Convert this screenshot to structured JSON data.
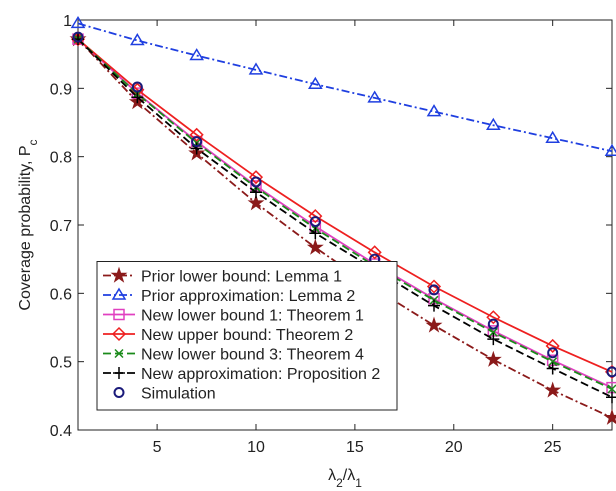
{
  "chart_data": {
    "type": "line",
    "xlabel": [
      {
        "text": "λ"
      },
      {
        "text": "2",
        "sub": true
      },
      {
        "text": "/λ"
      },
      {
        "text": "1",
        "sub": true
      }
    ],
    "ylabel": [
      {
        "text": "Coverage probability, P"
      },
      {
        "text": "c",
        "sub": true
      }
    ],
    "x": [
      1,
      4,
      7,
      10,
      13,
      16,
      19,
      22,
      25,
      28
    ],
    "xlim": [
      1,
      28
    ],
    "ylim": [
      0.4,
      1
    ],
    "xticks": [
      5,
      10,
      15,
      20,
      25
    ],
    "yticks": [
      0.4,
      0.5,
      0.6,
      0.7,
      0.8,
      0.9,
      1
    ],
    "legend": "lower left",
    "series": [
      {
        "name": "Prior lower bound: Lemma 1",
        "color": "#8b1a1a",
        "marker": "star",
        "dash": "dashdot",
        "values": [
          0.972,
          0.88,
          0.805,
          0.732,
          0.667,
          0.607,
          0.553,
          0.503,
          0.458,
          0.418
        ]
      },
      {
        "name": "Prior approximation: Lemma 2",
        "color": "#1f3fe0",
        "marker": "triangle",
        "dash": "dashdot",
        "values": [
          0.995,
          0.97,
          0.948,
          0.927,
          0.906,
          0.886,
          0.866,
          0.846,
          0.827,
          0.808
        ]
      },
      {
        "name": "New lower bound 1: Theorem 1",
        "color": "#e040c0",
        "marker": "square",
        "dash": "solid",
        "values": [
          0.972,
          0.893,
          0.822,
          0.757,
          0.698,
          0.643,
          0.592,
          0.545,
          0.502,
          0.462
        ]
      },
      {
        "name": "New upper bound: Theorem 2",
        "color": "#ee2020",
        "marker": "diamond",
        "dash": "solid",
        "values": [
          0.972,
          0.898,
          0.832,
          0.77,
          0.713,
          0.66,
          0.61,
          0.565,
          0.523,
          0.485
        ]
      },
      {
        "name": "New lower bound 3: Theorem 4",
        "color": "#1a8a1a",
        "marker": "x",
        "dash": "dashed",
        "values": [
          0.972,
          0.892,
          0.82,
          0.755,
          0.695,
          0.64,
          0.59,
          0.543,
          0.5,
          0.46
        ]
      },
      {
        "name": "New approximation: Proposition 2",
        "color": "#000000",
        "marker": "plus",
        "dash": "dashed",
        "values": [
          0.972,
          0.887,
          0.812,
          0.748,
          0.688,
          0.635,
          0.582,
          0.533,
          0.49,
          0.448
        ]
      },
      {
        "name": "Simulation",
        "color": "#1a1a7a",
        "marker": "circle",
        "dash": "none",
        "values": [
          0.975,
          0.902,
          0.822,
          0.763,
          0.705,
          0.65,
          0.605,
          0.555,
          0.513,
          0.485
        ]
      }
    ]
  }
}
